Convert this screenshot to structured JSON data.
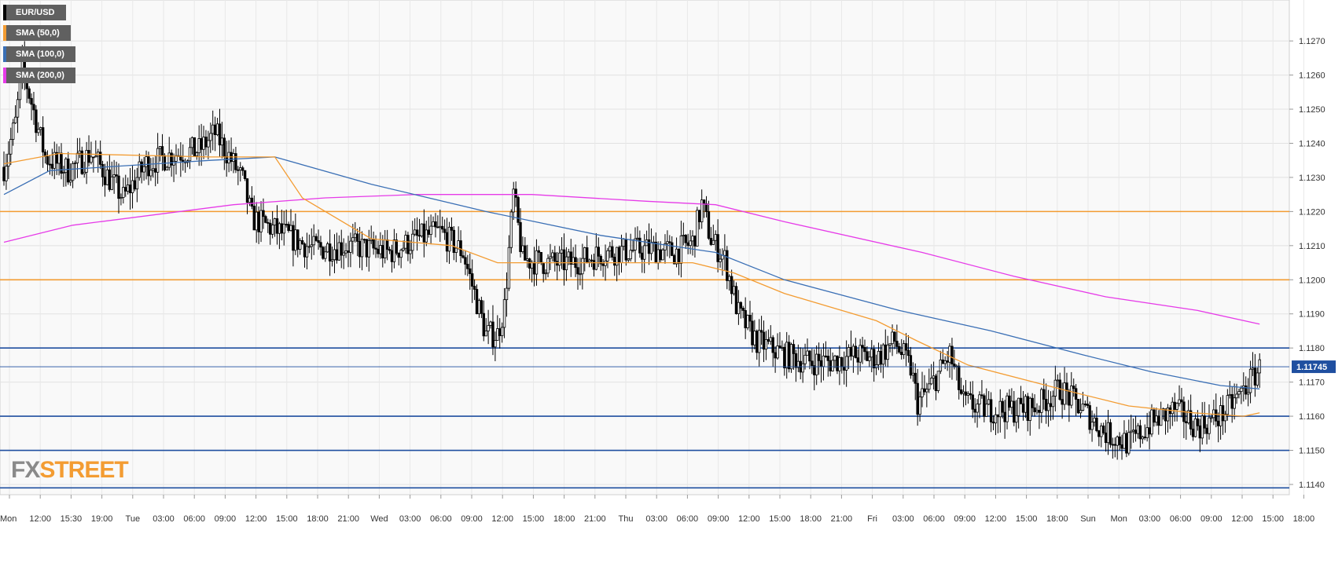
{
  "chart_data": {
    "type": "candlestick",
    "symbol": "EUR/USD",
    "last_price": "1.11745",
    "ylim": [
      1.1137,
      1.1282
    ],
    "y_ticks": [
      "1.1270",
      "1.1260",
      "1.1250",
      "1.1240",
      "1.1230",
      "1.1220",
      "1.1210",
      "1.1200",
      "1.1190",
      "1.1180",
      "1.1170",
      "1.1160",
      "1.1150",
      "1.1140"
    ],
    "x_ticks": [
      "Mon",
      "12:00",
      "15:30",
      "19:00",
      "Tue",
      "03:00",
      "06:00",
      "09:00",
      "12:00",
      "15:00",
      "18:00",
      "21:00",
      "Wed",
      "03:00",
      "06:00",
      "09:00",
      "12:00",
      "15:00",
      "18:00",
      "21:00",
      "Thu",
      "03:00",
      "06:00",
      "09:00",
      "12:00",
      "15:00",
      "18:00",
      "21:00",
      "Fri",
      "03:00",
      "06:00",
      "09:00",
      "12:00",
      "15:00",
      "18:00",
      "Sun",
      "Mon",
      "03:00",
      "06:00",
      "09:00",
      "12:00",
      "15:00",
      "18:00"
    ],
    "legend": [
      {
        "label": "EUR/USD",
        "color": "#000000"
      },
      {
        "label": "SMA (50,0)",
        "color": "#f39c32"
      },
      {
        "label": "SMA (100,0)",
        "color": "#3a6fb5"
      },
      {
        "label": "SMA (200,0)",
        "color": "#e63be8"
      }
    ],
    "horizontal_levels": [
      {
        "value": 1.122,
        "color": "#f39c32"
      },
      {
        "value": 1.12,
        "color": "#f39c32"
      },
      {
        "value": 1.118,
        "color": "#1f4fa0"
      },
      {
        "value": 1.116,
        "color": "#1f4fa0"
      },
      {
        "value": 1.115,
        "color": "#1f4fa0"
      },
      {
        "value": 1.1139,
        "color": "#1f4fa0"
      }
    ],
    "price_path": [
      [
        0,
        1.1233
      ],
      [
        5,
        1.1246
      ],
      [
        8,
        1.1262
      ],
      [
        12,
        1.1252
      ],
      [
        18,
        1.1236
      ],
      [
        28,
        1.1232
      ],
      [
        38,
        1.1237
      ],
      [
        52,
        1.1224
      ],
      [
        62,
        1.1234
      ],
      [
        75,
        1.1237
      ],
      [
        85,
        1.1238
      ],
      [
        92,
        1.1243
      ],
      [
        100,
        1.1234
      ],
      [
        104,
        1.1229
      ],
      [
        108,
        1.1218
      ],
      [
        120,
        1.1214
      ],
      [
        135,
        1.1209
      ],
      [
        150,
        1.121
      ],
      [
        168,
        1.1208
      ],
      [
        180,
        1.1212
      ],
      [
        190,
        1.1214
      ],
      [
        200,
        1.1208
      ],
      [
        205,
        1.1196
      ],
      [
        210,
        1.1184
      ],
      [
        215,
        1.1184
      ],
      [
        218,
        1.1192
      ],
      [
        222,
        1.1225
      ],
      [
        226,
        1.1206
      ],
      [
        236,
        1.1205
      ],
      [
        248,
        1.1205
      ],
      [
        262,
        1.1208
      ],
      [
        282,
        1.1209
      ],
      [
        292,
        1.1208
      ],
      [
        300,
        1.1211
      ],
      [
        304,
        1.1222
      ],
      [
        308,
        1.1212
      ],
      [
        314,
        1.1206
      ],
      [
        320,
        1.119
      ],
      [
        328,
        1.1182
      ],
      [
        340,
        1.1178
      ],
      [
        350,
        1.1176
      ],
      [
        360,
        1.1176
      ],
      [
        372,
        1.1178
      ],
      [
        380,
        1.1177
      ],
      [
        388,
        1.1182
      ],
      [
        395,
        1.1174
      ],
      [
        398,
        1.1164
      ],
      [
        403,
        1.1168
      ],
      [
        412,
        1.1178
      ],
      [
        418,
        1.1164
      ],
      [
        428,
        1.1162
      ],
      [
        440,
        1.1162
      ],
      [
        450,
        1.1163
      ],
      [
        460,
        1.1168
      ],
      [
        470,
        1.1162
      ],
      [
        480,
        1.1155
      ],
      [
        490,
        1.1152
      ],
      [
        500,
        1.1158
      ],
      [
        510,
        1.1162
      ],
      [
        520,
        1.1157
      ],
      [
        530,
        1.116
      ],
      [
        538,
        1.1166
      ],
      [
        547,
        1.1174
      ]
    ],
    "sma_50": [
      [
        0,
        1.1234
      ],
      [
        24,
        1.1237
      ],
      [
        90,
        1.1236
      ],
      [
        118,
        1.1236
      ],
      [
        130,
        1.1224
      ],
      [
        160,
        1.1212
      ],
      [
        195,
        1.121
      ],
      [
        215,
        1.1205
      ],
      [
        260,
        1.1205
      ],
      [
        300,
        1.1205
      ],
      [
        318,
        1.1202
      ],
      [
        340,
        1.1196
      ],
      [
        380,
        1.1188
      ],
      [
        398,
        1.1182
      ],
      [
        420,
        1.1175
      ],
      [
        460,
        1.1168
      ],
      [
        490,
        1.1163
      ],
      [
        518,
        1.1161
      ],
      [
        540,
        1.116
      ],
      [
        547,
        1.1161
      ]
    ],
    "sma_100": [
      [
        0,
        1.1225
      ],
      [
        20,
        1.1232
      ],
      [
        90,
        1.1235
      ],
      [
        118,
        1.1236
      ],
      [
        160,
        1.1228
      ],
      [
        210,
        1.122
      ],
      [
        260,
        1.1213
      ],
      [
        310,
        1.1208
      ],
      [
        340,
        1.12
      ],
      [
        390,
        1.1191
      ],
      [
        430,
        1.1185
      ],
      [
        470,
        1.1178
      ],
      [
        500,
        1.1173
      ],
      [
        530,
        1.1169
      ],
      [
        547,
        1.1168
      ]
    ],
    "sma_200": [
      [
        0,
        1.1211
      ],
      [
        30,
        1.1216
      ],
      [
        100,
        1.1222
      ],
      [
        140,
        1.1224
      ],
      [
        180,
        1.1225
      ],
      [
        230,
        1.1225
      ],
      [
        280,
        1.1223
      ],
      [
        310,
        1.1222
      ],
      [
        340,
        1.1217
      ],
      [
        400,
        1.1208
      ],
      [
        440,
        1.1201
      ],
      [
        480,
        1.1195
      ],
      [
        520,
        1.1191
      ],
      [
        547,
        1.1187
      ]
    ]
  },
  "watermark": {
    "part1": "FX",
    "part2": "STREET"
  }
}
